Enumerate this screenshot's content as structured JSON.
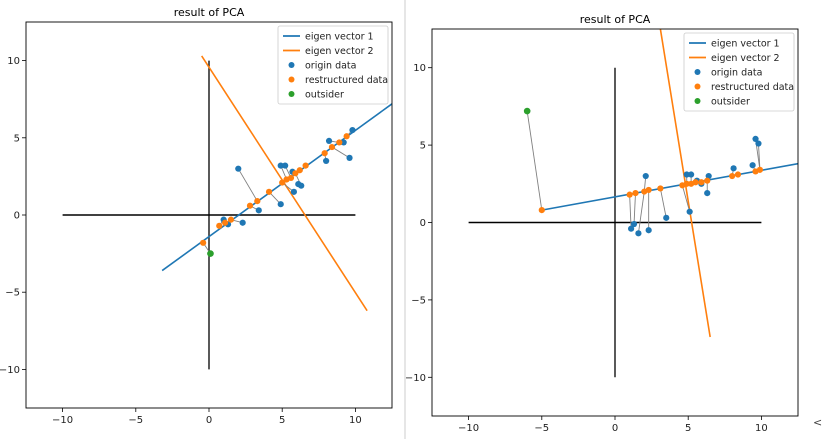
{
  "figure_corner_mark": "<",
  "colors": {
    "vec1": "#1f77b4",
    "vec2": "#ff7f0e",
    "origin": "#1f77b4",
    "restructured": "#ff7f0e",
    "outsider": "#2ca02c",
    "axes_cross": "#000000",
    "link": "#808080"
  },
  "chart_data": [
    {
      "type": "scatter",
      "title": "result of PCA",
      "xlim": [
        -12.5,
        12.5
      ],
      "ylim": [
        -12.5,
        12.5
      ],
      "xticks": [
        -10,
        -5,
        0,
        5,
        10
      ],
      "yticks": [
        -10,
        -5,
        0,
        5,
        10
      ],
      "xtick_labels": [
        "−10",
        "−5",
        "0",
        "5",
        "10"
      ],
      "ytick_labels": [
        "−10",
        "−5",
        "0",
        "5",
        "10"
      ],
      "legend": {
        "placement": "top-right",
        "entries": [
          {
            "label": "eigen vector 1",
            "kind": "line",
            "color_key": "vec1"
          },
          {
            "label": "eigen vector 2",
            "kind": "line",
            "color_key": "vec2"
          },
          {
            "label": "origin data",
            "kind": "dot",
            "color_key": "origin"
          },
          {
            "label": "restructured data",
            "kind": "dot",
            "color_key": "restructured"
          },
          {
            "label": "outsider",
            "kind": "dot",
            "color_key": "outsider"
          }
        ]
      },
      "reference_lines": [
        {
          "name": "horizontal-axis-line",
          "from": [
            -10,
            0
          ],
          "to": [
            10,
            0
          ]
        },
        {
          "name": "vertical-axis-line",
          "from": [
            0,
            -10
          ],
          "to": [
            0,
            10
          ]
        }
      ],
      "eigen_vector_1": {
        "from": [
          -3.2,
          -3.6
        ],
        "to": [
          12.5,
          7.2
        ]
      },
      "eigen_vector_2": {
        "from": [
          -0.5,
          10.3
        ],
        "to": [
          10.8,
          -6.2
        ]
      },
      "origin_data": [
        [
          1.0,
          -0.3
        ],
        [
          1.3,
          -0.6
        ],
        [
          2.3,
          -0.5
        ],
        [
          2.0,
          3.0
        ],
        [
          3.4,
          0.3
        ],
        [
          4.9,
          0.7
        ],
        [
          4.9,
          3.2
        ],
        [
          5.2,
          3.2
        ],
        [
          5.7,
          2.8
        ],
        [
          5.8,
          1.5
        ],
        [
          6.1,
          2.0
        ],
        [
          6.3,
          1.9
        ],
        [
          8.2,
          4.8
        ],
        [
          8.0,
          3.5
        ],
        [
          9.2,
          4.7
        ],
        [
          9.6,
          3.7
        ],
        [
          9.8,
          5.5
        ],
        [
          0.1,
          -2.5
        ]
      ],
      "restructured_data": [
        [
          0.7,
          -0.7
        ],
        [
          1.1,
          -0.5
        ],
        [
          1.5,
          -0.3
        ],
        [
          2.8,
          0.6
        ],
        [
          3.3,
          0.9
        ],
        [
          4.1,
          1.5
        ],
        [
          5.0,
          2.1
        ],
        [
          5.3,
          2.3
        ],
        [
          5.6,
          2.4
        ],
        [
          5.9,
          2.7
        ],
        [
          6.2,
          2.9
        ],
        [
          6.6,
          3.2
        ],
        [
          7.9,
          4.0
        ],
        [
          8.4,
          4.4
        ],
        [
          8.9,
          4.7
        ],
        [
          9.4,
          5.1
        ],
        [
          -0.4,
          -1.8
        ]
      ],
      "outsider": [
        [
          0.1,
          -2.5
        ]
      ],
      "links": [
        [
          [
            1.0,
            -0.3
          ],
          [
            0.7,
            -0.7
          ]
        ],
        [
          [
            1.3,
            -0.6
          ],
          [
            1.1,
            -0.5
          ]
        ],
        [
          [
            2.3,
            -0.5
          ],
          [
            1.5,
            -0.3
          ]
        ],
        [
          [
            2.0,
            3.0
          ],
          [
            3.3,
            0.9
          ]
        ],
        [
          [
            3.4,
            0.3
          ],
          [
            2.8,
            0.6
          ]
        ],
        [
          [
            4.9,
            0.7
          ],
          [
            4.1,
            1.5
          ]
        ],
        [
          [
            4.9,
            3.2
          ],
          [
            5.3,
            2.3
          ]
        ],
        [
          [
            5.2,
            3.2
          ],
          [
            5.6,
            2.4
          ]
        ],
        [
          [
            5.8,
            1.5
          ],
          [
            5.0,
            2.1
          ]
        ],
        [
          [
            6.3,
            1.9
          ],
          [
            5.9,
            2.7
          ]
        ],
        [
          [
            8.2,
            4.8
          ],
          [
            8.9,
            4.7
          ]
        ],
        [
          [
            8.0,
            3.5
          ],
          [
            7.9,
            4.0
          ]
        ],
        [
          [
            9.6,
            3.7
          ],
          [
            8.4,
            4.4
          ]
        ],
        [
          [
            9.8,
            5.5
          ],
          [
            9.4,
            5.1
          ]
        ],
        [
          [
            0.1,
            -2.5
          ],
          [
            -0.4,
            -1.8
          ]
        ]
      ]
    },
    {
      "type": "scatter",
      "title": "result of PCA",
      "xlim": [
        -12.5,
        12.5
      ],
      "ylim": [
        -12.5,
        12.5
      ],
      "xticks": [
        -10,
        -5,
        0,
        5,
        10
      ],
      "yticks": [
        -10,
        -5,
        0,
        5,
        10
      ],
      "xtick_labels": [
        "−10",
        "−5",
        "0",
        "5",
        "10"
      ],
      "ytick_labels": [
        "−10",
        "−5",
        "0",
        "5",
        "10"
      ],
      "legend": {
        "placement": "top-right",
        "entries": [
          {
            "label": "eigen vector 1",
            "kind": "line",
            "color_key": "vec1"
          },
          {
            "label": "eigen vector 2",
            "kind": "line",
            "color_key": "vec2"
          },
          {
            "label": "origin data",
            "kind": "dot",
            "color_key": "origin"
          },
          {
            "label": "restructured data",
            "kind": "dot",
            "color_key": "restructured"
          },
          {
            "label": "outsider",
            "kind": "dot",
            "color_key": "outsider"
          }
        ]
      },
      "reference_lines": [
        {
          "name": "horizontal-axis-line",
          "from": [
            -10,
            0
          ],
          "to": [
            10,
            0
          ]
        },
        {
          "name": "vertical-axis-line",
          "from": [
            0,
            -10
          ],
          "to": [
            0,
            10
          ]
        }
      ],
      "eigen_vector_1": {
        "from": [
          -5.0,
          0.8
        ],
        "to": [
          12.5,
          3.8
        ]
      },
      "eigen_vector_2": {
        "from": [
          3.1,
          12.5
        ],
        "to": [
          6.5,
          -7.4
        ]
      },
      "origin_data": [
        [
          1.1,
          -0.4
        ],
        [
          1.3,
          -0.1
        ],
        [
          1.6,
          -0.7
        ],
        [
          2.3,
          -0.5
        ],
        [
          2.1,
          3.0
        ],
        [
          3.5,
          0.3
        ],
        [
          4.9,
          3.1
        ],
        [
          5.1,
          0.7
        ],
        [
          5.2,
          3.1
        ],
        [
          5.6,
          2.7
        ],
        [
          5.9,
          2.5
        ],
        [
          6.3,
          1.9
        ],
        [
          6.4,
          3.0
        ],
        [
          8.1,
          3.5
        ],
        [
          9.4,
          3.7
        ],
        [
          9.6,
          5.4
        ],
        [
          9.8,
          5.1
        ],
        [
          -6.0,
          7.2
        ]
      ],
      "restructured_data": [
        [
          1.0,
          1.8
        ],
        [
          1.4,
          1.9
        ],
        [
          2.0,
          2.0
        ],
        [
          2.3,
          2.1
        ],
        [
          3.1,
          2.2
        ],
        [
          4.6,
          2.4
        ],
        [
          4.9,
          2.5
        ],
        [
          5.2,
          2.5
        ],
        [
          5.5,
          2.6
        ],
        [
          5.9,
          2.6
        ],
        [
          6.3,
          2.7
        ],
        [
          8.0,
          3.0
        ],
        [
          8.4,
          3.1
        ],
        [
          9.6,
          3.3
        ],
        [
          9.9,
          3.4
        ],
        [
          -5.0,
          0.8
        ]
      ],
      "outsider": [
        [
          -6.0,
          7.2
        ]
      ],
      "links": [
        [
          [
            1.1,
            -0.4
          ],
          [
            1.0,
            1.8
          ]
        ],
        [
          [
            1.3,
            -0.1
          ],
          [
            1.4,
            1.9
          ]
        ],
        [
          [
            1.6,
            -0.7
          ],
          [
            2.0,
            2.0
          ]
        ],
        [
          [
            2.3,
            -0.5
          ],
          [
            2.3,
            2.1
          ]
        ],
        [
          [
            2.1,
            3.0
          ],
          [
            2.0,
            2.0
          ]
        ],
        [
          [
            3.5,
            0.3
          ],
          [
            3.1,
            2.2
          ]
        ],
        [
          [
            4.9,
            3.1
          ],
          [
            4.9,
            2.5
          ]
        ],
        [
          [
            5.1,
            0.7
          ],
          [
            4.6,
            2.4
          ]
        ],
        [
          [
            5.2,
            3.1
          ],
          [
            5.2,
            2.5
          ]
        ],
        [
          [
            6.3,
            1.9
          ],
          [
            6.3,
            2.7
          ]
        ],
        [
          [
            8.1,
            3.5
          ],
          [
            8.0,
            3.0
          ]
        ],
        [
          [
            9.4,
            3.7
          ],
          [
            9.6,
            3.3
          ]
        ],
        [
          [
            9.6,
            5.4
          ],
          [
            9.9,
            3.4
          ]
        ],
        [
          [
            9.8,
            5.1
          ],
          [
            9.9,
            3.4
          ]
        ],
        [
          [
            -6.0,
            7.2
          ],
          [
            -5.0,
            0.8
          ]
        ]
      ]
    }
  ]
}
